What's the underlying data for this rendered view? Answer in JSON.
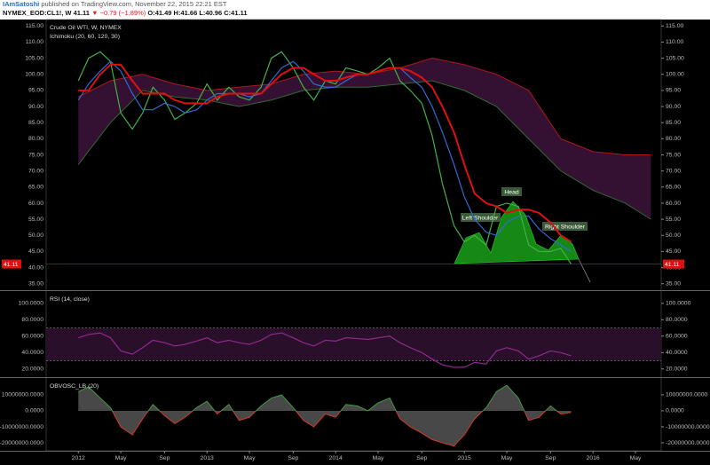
{
  "header": {
    "user": "IAmSatoshi",
    "published": "published on TradingView.com, November 22, 2015 22:21 EST",
    "symbol": "NYMEX_EOD:CL1!, W",
    "last": "41.11",
    "change": "▼ −0.79 (−1.89%)",
    "ohlc": "O:41.49 H:41.66 L:40.96 C:41.11"
  },
  "chart_data": [
    {
      "type": "line",
      "title": "Crude Oil WTI, W, NYMEX",
      "subtitle": "Ichimoku (20, 60, 120, 30)",
      "x": [
        2012,
        2012.08,
        2012.17,
        2012.25,
        2012.33,
        2012.42,
        2012.5,
        2012.58,
        2012.67,
        2012.75,
        2012.83,
        2012.92,
        2013,
        2013.08,
        2013.17,
        2013.25,
        2013.33,
        2013.42,
        2013.5,
        2013.58,
        2013.67,
        2013.75,
        2013.83,
        2013.92,
        2014,
        2014.08,
        2014.17,
        2014.25,
        2014.33,
        2014.42,
        2014.5,
        2014.58,
        2014.67,
        2014.75,
        2014.83,
        2014.92,
        2015,
        2015.08,
        2015.17,
        2015.25,
        2015.33,
        2015.42,
        2015.5,
        2015.58,
        2015.67,
        2015.75,
        2015.83
      ],
      "series": [
        {
          "color": "#43b047",
          "values": [
            98,
            105,
            107,
            104,
            88,
            83,
            88,
            96,
            92,
            86,
            88,
            91,
            97,
            92,
            96,
            93,
            92,
            96,
            105,
            107,
            102,
            96,
            92,
            98,
            97,
            102,
            101,
            100,
            102,
            105,
            98,
            95,
            91,
            81,
            66,
            53,
            48,
            50,
            47,
            59,
            60,
            59,
            47,
            45,
            45,
            46,
            41.11
          ]
        },
        {
          "color": "#2f6bd6",
          "values": [
            92,
            97,
            101,
            104,
            101,
            94,
            89,
            89,
            91,
            90,
            88,
            89,
            92,
            94,
            94,
            94,
            93,
            94,
            98,
            102,
            104,
            101,
            97,
            96,
            96,
            98,
            100,
            100,
            101,
            102,
            102,
            99,
            96,
            90,
            82,
            72,
            62,
            55,
            51,
            50,
            54,
            56,
            56,
            52,
            49,
            47,
            45
          ]
        },
        {
          "color": "#e01010",
          "values": [
            95,
            95,
            100,
            103,
            103,
            98,
            94,
            94,
            94,
            92,
            91,
            91,
            91,
            93,
            94,
            94,
            94,
            94,
            97,
            100,
            102,
            102,
            100,
            98,
            98,
            99,
            100,
            100,
            101,
            102,
            102,
            101,
            99,
            96,
            90,
            82,
            72,
            63,
            60,
            59,
            57,
            58,
            58,
            57,
            54,
            50,
            48
          ]
        }
      ],
      "cloud": {
        "x": [
          2012,
          2012.25,
          2012.5,
          2012.75,
          2013,
          2013.25,
          2013.5,
          2013.75,
          2014,
          2014.25,
          2014.5,
          2014.75,
          2015,
          2015.25,
          2015.5,
          2015.75,
          2016,
          2016.25,
          2016.45
        ],
        "upper": [
          93,
          98,
          100,
          97,
          95,
          96,
          97,
          100,
          101,
          100,
          102,
          105,
          103,
          100,
          95,
          80,
          76,
          75,
          75
        ],
        "lower": [
          72,
          85,
          95,
          93,
          92,
          90,
          92,
          95,
          96,
          96,
          97,
          98,
          95,
          90,
          80,
          70,
          64,
          60,
          55
        ],
        "color": "#3a1338",
        "upper_color": "#b01818",
        "lower_color": "#2e6b2e"
      },
      "annotations": [
        "Left Shoulder",
        "Head",
        "Right Shoulder"
      ],
      "last_price": 41.11,
      "last_color": "#e01010",
      "xlim": [
        2011.75,
        2016.53
      ],
      "ylim": [
        33,
        117
      ],
      "yticks": [
        {
          "value": 35,
          "label": "35.00"
        },
        {
          "value": 40,
          "label": "40.00"
        },
        {
          "value": 45,
          "label": "45.00"
        },
        {
          "value": 50,
          "label": "50.00"
        },
        {
          "value": 55,
          "label": "55.00"
        },
        {
          "value": 60,
          "label": "60.00"
        },
        {
          "value": 65,
          "label": "65.00"
        },
        {
          "value": 70,
          "label": "70.00"
        },
        {
          "value": 75,
          "label": "75.00"
        },
        {
          "value": 80,
          "label": "80.00"
        },
        {
          "value": 85,
          "label": "85.00"
        },
        {
          "value": 90,
          "label": "90.00"
        },
        {
          "value": 95,
          "label": "95.00"
        },
        {
          "value": 100,
          "label": "100.00"
        },
        {
          "value": 105,
          "label": "105.00"
        },
        {
          "value": 110,
          "label": "110.00"
        },
        {
          "value": 115,
          "label": "115.00"
        }
      ],
      "grid": false
    },
    {
      "type": "line",
      "title": "RSI (14, close)",
      "x": [
        2012,
        2012.08,
        2012.17,
        2012.25,
        2012.33,
        2012.42,
        2012.5,
        2012.58,
        2012.67,
        2012.75,
        2012.83,
        2012.92,
        2013,
        2013.08,
        2013.17,
        2013.25,
        2013.33,
        2013.42,
        2013.5,
        2013.58,
        2013.67,
        2013.75,
        2013.83,
        2013.92,
        2014,
        2014.08,
        2014.17,
        2014.25,
        2014.33,
        2014.42,
        2014.5,
        2014.58,
        2014.67,
        2014.75,
        2014.83,
        2014.92,
        2015,
        2015.08,
        2015.17,
        2015.25,
        2015.33,
        2015.42,
        2015.5,
        2015.58,
        2015.67,
        2015.75,
        2015.83
      ],
      "series": [
        {
          "color": "#8e2a8e",
          "values": [
            58,
            62,
            64,
            58,
            42,
            38,
            46,
            55,
            52,
            48,
            50,
            54,
            58,
            52,
            55,
            52,
            50,
            55,
            62,
            64,
            58,
            52,
            48,
            55,
            54,
            58,
            57,
            56,
            58,
            60,
            52,
            46,
            40,
            32,
            25,
            22,
            22,
            28,
            26,
            42,
            46,
            42,
            32,
            36,
            42,
            40,
            36
          ]
        }
      ],
      "bands": [
        30,
        70
      ],
      "band_color": "#2a0f2a",
      "xlim": [
        2011.75,
        2016.53
      ],
      "ylim": [
        10,
        115
      ],
      "yticks": [
        {
          "value": 20,
          "label": "20.0000"
        },
        {
          "value": 40,
          "label": "40.0000"
        },
        {
          "value": 60,
          "label": "60.0000"
        },
        {
          "value": 80,
          "label": "80.0000"
        },
        {
          "value": 100,
          "label": "100.0000"
        }
      ],
      "grid": false
    },
    {
      "type": "area",
      "title": "OBVOSC_LB (20)",
      "x": [
        2012,
        2012.08,
        2012.17,
        2012.25,
        2012.33,
        2012.42,
        2012.5,
        2012.58,
        2012.67,
        2012.75,
        2012.83,
        2012.92,
        2013,
        2013.08,
        2013.17,
        2013.25,
        2013.33,
        2013.42,
        2013.5,
        2013.58,
        2013.67,
        2013.75,
        2013.83,
        2013.92,
        2014,
        2014.08,
        2014.17,
        2014.25,
        2014.33,
        2014.42,
        2014.5,
        2014.58,
        2014.67,
        2014.75,
        2014.83,
        2014.92,
        2015,
        2015.08,
        2015.17,
        2015.25,
        2015.33,
        2015.42,
        2015.5,
        2015.58,
        2015.67,
        2015.75,
        2015.83
      ],
      "values": [
        12000000,
        15000000,
        8000000,
        2000000,
        -10000000,
        -15000000,
        -5000000,
        4000000,
        -3000000,
        -8000000,
        -4000000,
        2000000,
        6000000,
        -2000000,
        4000000,
        -6000000,
        -4000000,
        3000000,
        8000000,
        10000000,
        2000000,
        -6000000,
        -10000000,
        -2000000,
        -4000000,
        4000000,
        3000000,
        0,
        5000000,
        8000000,
        -5000000,
        -10000000,
        -14000000,
        -18000000,
        -20000000,
        -22000000,
        -15000000,
        -5000000,
        2000000,
        12000000,
        16000000,
        8000000,
        -6000000,
        -4000000,
        3000000,
        -2000000,
        -1000000
      ],
      "color": "#666666",
      "color_up": "#3f9a3f",
      "color_down": "#d23a2a",
      "xlim": [
        2011.75,
        2016.53
      ],
      "ylim": [
        -25000000,
        20500000
      ],
      "yticks": [
        {
          "value": -20000000,
          "label": "-20000000.0000"
        },
        {
          "value": -10000000,
          "label": "-10000000.0000"
        },
        {
          "value": 0,
          "label": "0.0000"
        },
        {
          "value": 10000000,
          "label": "10000000.0000"
        }
      ],
      "xticks": [
        {
          "value": 2012,
          "label": "2012"
        },
        {
          "value": 2012.33,
          "label": "May"
        },
        {
          "value": 2012.67,
          "label": "Sep"
        },
        {
          "value": 2013,
          "label": "2013"
        },
        {
          "value": 2013.33,
          "label": "May"
        },
        {
          "value": 2013.67,
          "label": "Sep"
        },
        {
          "value": 2014,
          "label": "2014"
        },
        {
          "value": 2014.33,
          "label": "May"
        },
        {
          "value": 2014.67,
          "label": "Sep"
        },
        {
          "value": 2015,
          "label": "2015"
        },
        {
          "value": 2015.33,
          "label": "May"
        },
        {
          "value": 2015.67,
          "label": "Sep"
        },
        {
          "value": 2016,
          "label": "2016"
        },
        {
          "value": 2016.33,
          "label": "May"
        }
      ],
      "grid": false
    }
  ]
}
